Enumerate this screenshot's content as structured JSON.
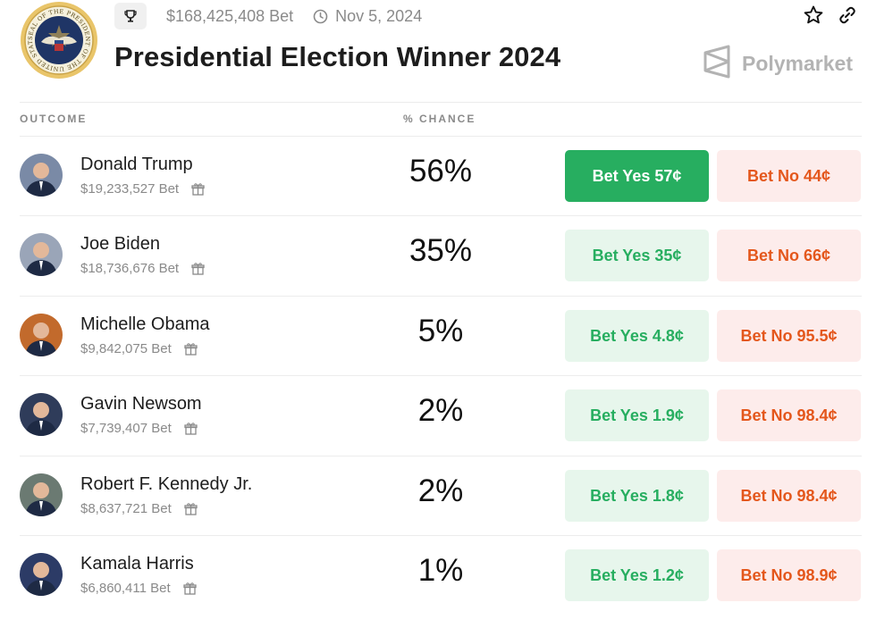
{
  "header": {
    "volume": "$168,425,408 Bet",
    "end_date": "Nov 5, 2024",
    "title": "Presidential Election Winner 2024",
    "brand": "Polymarket",
    "seal_text": "SEAL OF THE PRESIDENT OF THE UNITED STATES"
  },
  "columns": {
    "outcome": "OUTCOME",
    "chance": "% CHANCE"
  },
  "outcomes": [
    {
      "name": "Donald Trump",
      "bet": "$19,233,527 Bet",
      "chance": "56%",
      "yes": "Bet Yes 57¢",
      "no": "Bet No 44¢",
      "avatar_color": "#7a8aa6"
    },
    {
      "name": "Joe Biden",
      "bet": "$18,736,676 Bet",
      "chance": "35%",
      "yes": "Bet Yes 35¢",
      "no": "Bet No 66¢",
      "avatar_color": "#9aa5b8"
    },
    {
      "name": "Michelle Obama",
      "bet": "$9,842,075 Bet",
      "chance": "5%",
      "yes": "Bet Yes 4.8¢",
      "no": "Bet No 95.5¢",
      "avatar_color": "#c26a2c"
    },
    {
      "name": "Gavin Newsom",
      "bet": "$7,739,407 Bet",
      "chance": "2%",
      "yes": "Bet Yes 1.9¢",
      "no": "Bet No 98.4¢",
      "avatar_color": "#2f3c5a"
    },
    {
      "name": "Robert F. Kennedy Jr.",
      "bet": "$8,637,721 Bet",
      "chance": "2%",
      "yes": "Bet Yes 1.8¢",
      "no": "Bet No 98.4¢",
      "avatar_color": "#6b7a72"
    },
    {
      "name": "Kamala Harris",
      "bet": "$6,860,411 Bet",
      "chance": "1%",
      "yes": "Bet Yes 1.2¢",
      "no": "Bet No 98.9¢",
      "avatar_color": "#2c3b66"
    }
  ],
  "colors": {
    "yes_active": "#27ae60",
    "yes_bg": "#e7f6ec",
    "no_bg": "#fdeceb",
    "no_text": "#e4571c"
  }
}
